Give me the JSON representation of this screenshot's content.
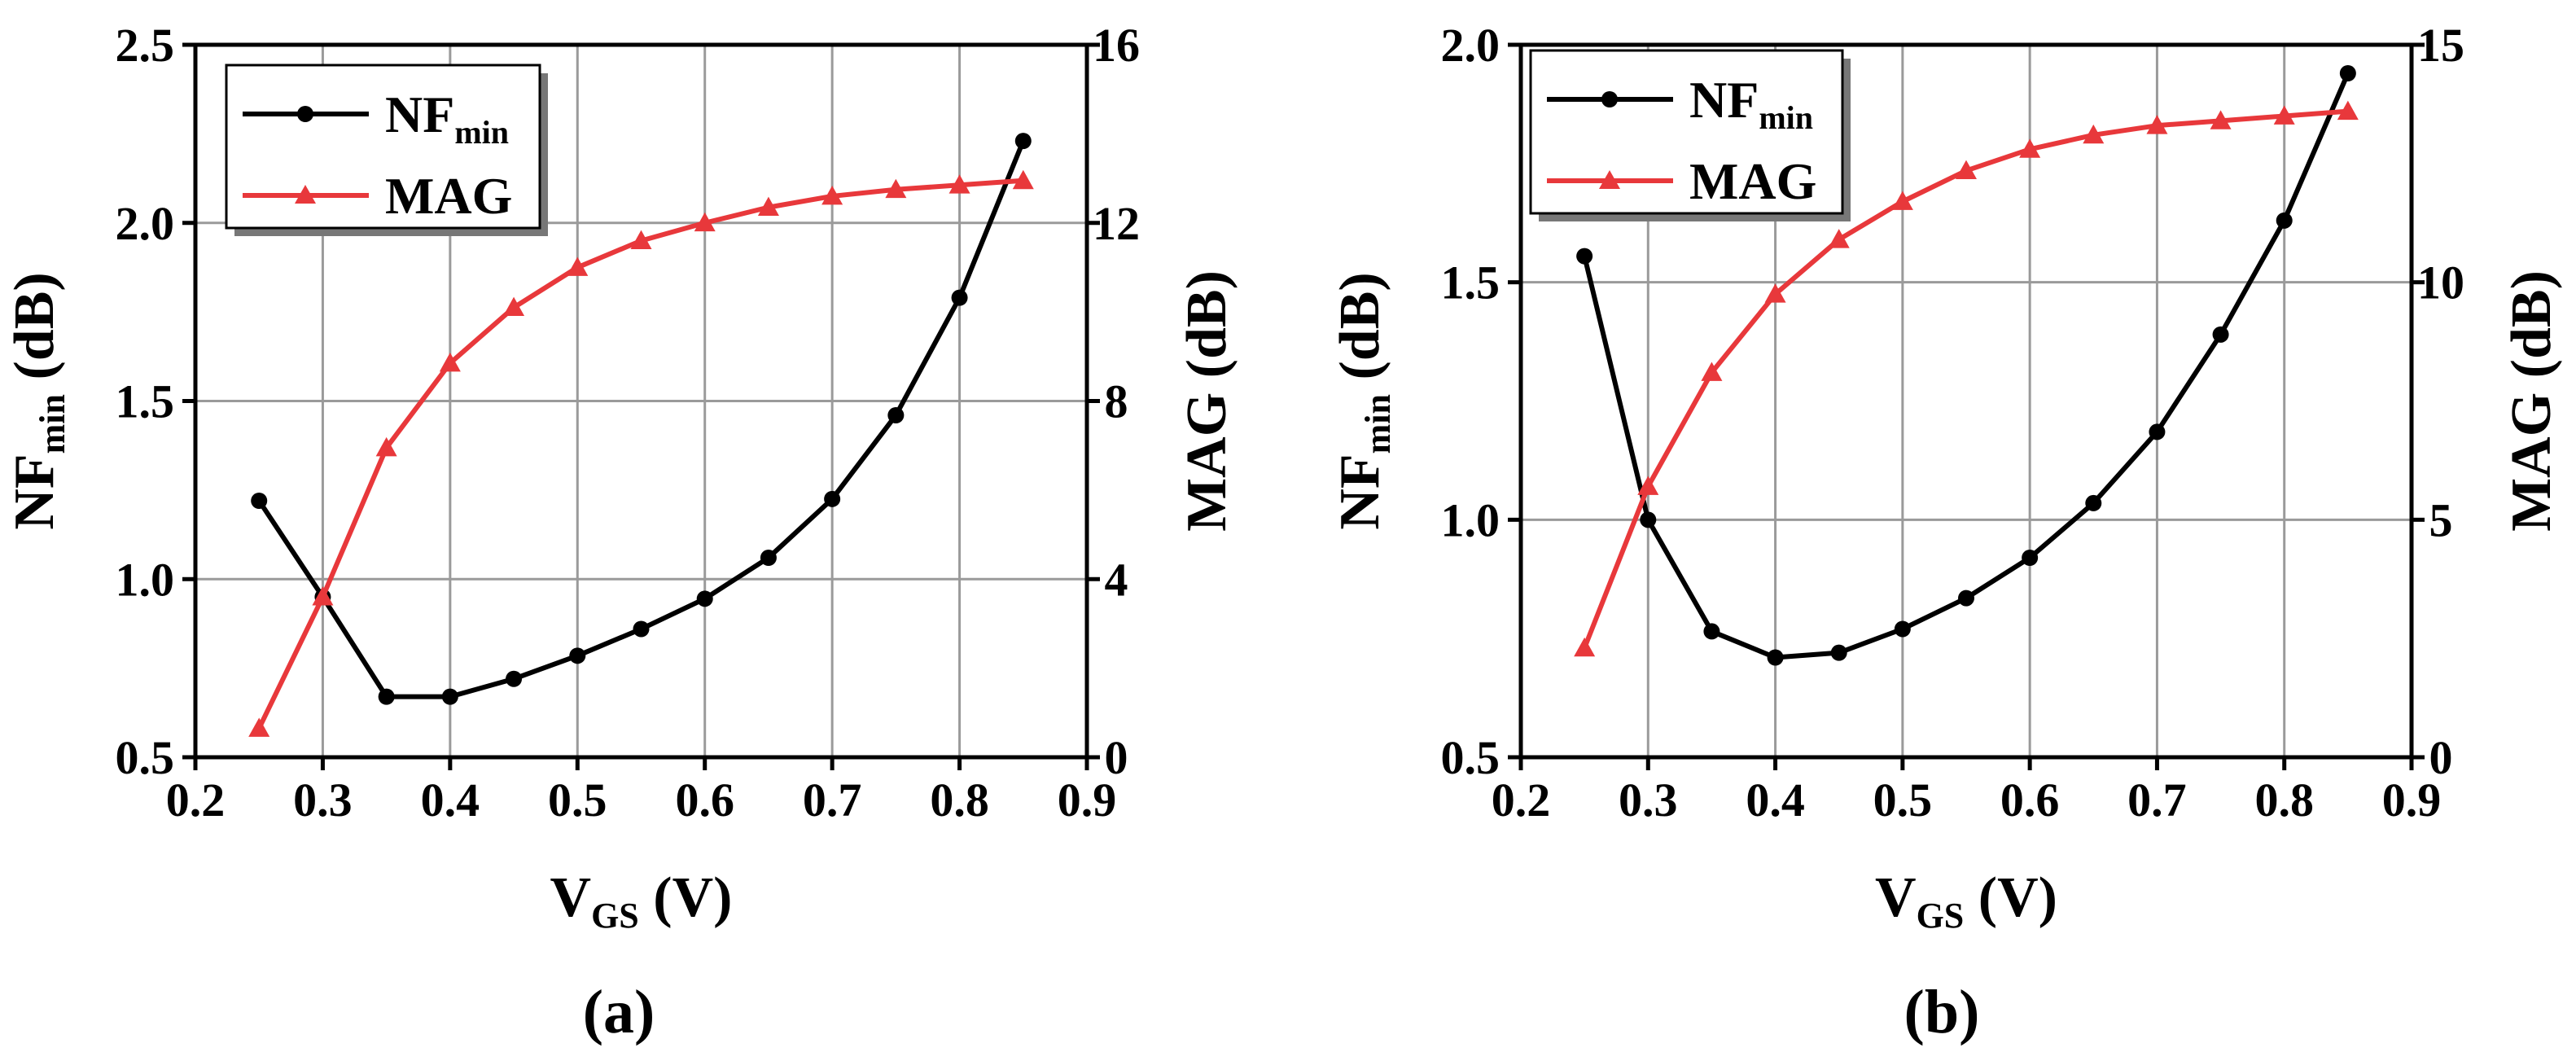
{
  "chart_data": [
    {
      "type": "line",
      "panel_label": "(a)",
      "x": [
        0.25,
        0.3,
        0.35,
        0.4,
        0.45,
        0.5,
        0.55,
        0.6,
        0.65,
        0.7,
        0.75,
        0.8,
        0.85
      ],
      "xlabel": {
        "main": "V",
        "sub": "GS",
        "unit": " (V)"
      },
      "ylabel": {
        "main": "NF",
        "sub": "min",
        "unit": " (dB)"
      },
      "y2label": "MAG (dB)",
      "xlim": [
        0.2,
        0.9
      ],
      "ylim": [
        0.5,
        2.5
      ],
      "y2lim": [
        0,
        16
      ],
      "xticks": [
        "0.2",
        "0.3",
        "0.4",
        "0.5",
        "0.6",
        "0.7",
        "0.8",
        "0.9"
      ],
      "yticks": [
        "0.5",
        "1.0",
        "1.5",
        "2.0",
        "2.5"
      ],
      "y2ticks": [
        "0",
        "4",
        "8",
        "12",
        "16"
      ],
      "grid": true,
      "legend_position": "top-left",
      "series": [
        {
          "name": "NF",
          "name_sub": "min",
          "axis": "left",
          "color": "#000000",
          "marker": "circle",
          "values": [
            1.22,
            0.95,
            0.67,
            0.67,
            0.72,
            0.785,
            0.86,
            0.945,
            1.06,
            1.225,
            1.46,
            1.79,
            2.23
          ]
        },
        {
          "name": "MAG",
          "name_sub": "",
          "axis": "right",
          "color": "#e8383b",
          "marker": "triangle",
          "values": [
            0.65,
            3.6,
            6.95,
            8.85,
            10.1,
            11.0,
            11.6,
            12.0,
            12.35,
            12.6,
            12.75,
            12.85,
            12.95
          ]
        }
      ]
    },
    {
      "type": "line",
      "panel_label": "(b)",
      "x": [
        0.25,
        0.3,
        0.35,
        0.4,
        0.45,
        0.5,
        0.55,
        0.6,
        0.65,
        0.7,
        0.75,
        0.8,
        0.85
      ],
      "xlabel": {
        "main": "V",
        "sub": "GS",
        "unit": " (V)"
      },
      "ylabel": {
        "main": "NF",
        "sub": "min",
        "unit": " (dB)"
      },
      "y2label": "MAG (dB)",
      "xlim": [
        0.2,
        0.9
      ],
      "ylim": [
        0.5,
        2.0
      ],
      "y2lim": [
        0,
        15
      ],
      "xticks": [
        "0.2",
        "0.3",
        "0.4",
        "0.5",
        "0.6",
        "0.7",
        "0.8",
        "0.9"
      ],
      "yticks": [
        "0.5",
        "1.0",
        "1.5",
        "2.0"
      ],
      "y2ticks": [
        "0",
        "5",
        "10",
        "15"
      ],
      "grid": true,
      "legend_position": "top-left",
      "series": [
        {
          "name": "NF",
          "name_sub": "min",
          "axis": "left",
          "color": "#000000",
          "marker": "circle",
          "values": [
            1.555,
            1.0,
            0.765,
            0.71,
            0.72,
            0.77,
            0.835,
            0.92,
            1.035,
            1.185,
            1.39,
            1.63,
            1.94
          ]
        },
        {
          "name": "MAG",
          "name_sub": "",
          "axis": "right",
          "color": "#e8383b",
          "marker": "triangle",
          "values": [
            2.3,
            5.7,
            8.1,
            9.75,
            10.9,
            11.7,
            12.35,
            12.8,
            13.1,
            13.3,
            13.4,
            13.5,
            13.6
          ]
        }
      ]
    }
  ]
}
